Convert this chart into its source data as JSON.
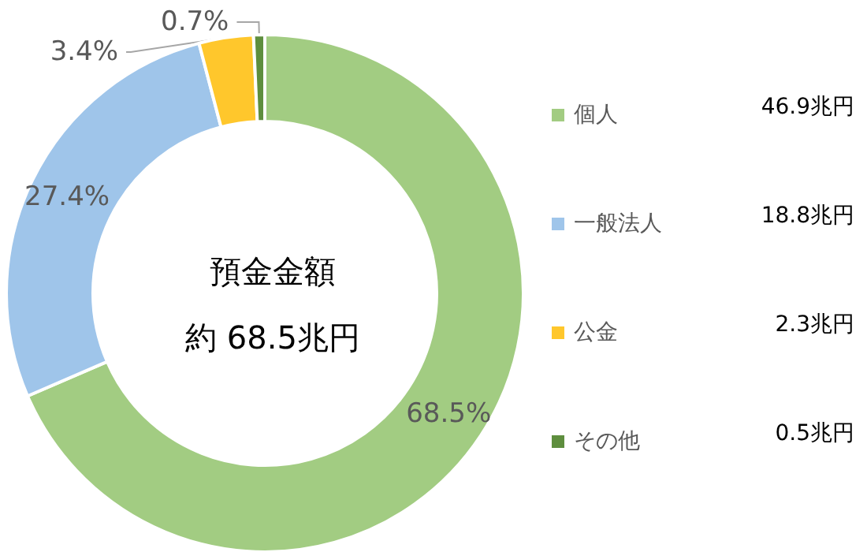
{
  "chart_data": {
    "type": "donut",
    "title": "預金金額",
    "subtitle": "約 68.5兆円",
    "categories": [
      "個人",
      "一般法人",
      "公金",
      "その他"
    ],
    "values": [
      68.5,
      27.4,
      3.4,
      0.7
    ],
    "value_labels": [
      "68.5%",
      "27.4%",
      "3.4%",
      "0.7%"
    ],
    "colors": [
      "#a2cc82",
      "#9fc5ea",
      "#ffc72c",
      "#5e8e3e"
    ],
    "annotations": [
      {
        "text": "46.9兆円",
        "x": "個人"
      },
      {
        "text": "18.8兆円",
        "x": "一般法人"
      },
      {
        "text": "2.3兆円",
        "x": "公金"
      },
      {
        "text": "0.5兆円",
        "x": "その他"
      }
    ],
    "legend": "right"
  }
}
